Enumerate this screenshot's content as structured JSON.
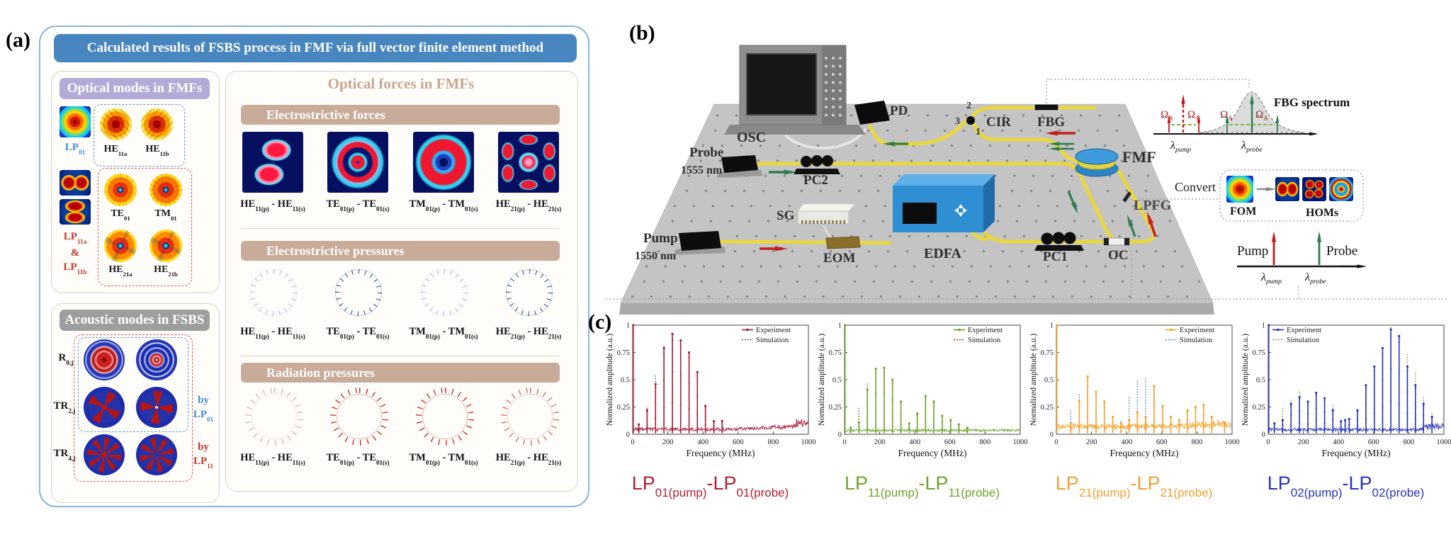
{
  "panel_a": {
    "label": "(a)",
    "title": "Calculated results of FSBS process in FMF via full vector finite element method",
    "optical": {
      "header": "Optical modes in FMFs",
      "lp01": {
        "b": "LP",
        "s": "01"
      },
      "he11a": {
        "b": "HE",
        "s": "11a"
      },
      "he11b": {
        "b": "HE",
        "s": "11b"
      },
      "lp11_line1": {
        "b": "LP",
        "s": "11a"
      },
      "lp11_amp": "&",
      "lp11_line2": {
        "b": "LP",
        "s": "11b"
      },
      "te01": {
        "b": "TE",
        "s": "01"
      },
      "tm01": {
        "b": "TM",
        "s": "01"
      },
      "he21a": {
        "b": "HE",
        "s": "21a"
      },
      "he21b": {
        "b": "HE",
        "s": "21b"
      }
    },
    "acoustic": {
      "header": "Acoustic modes in FSBS",
      "r0": {
        "b": "R",
        "s": "0,j"
      },
      "tr2": {
        "b": "TR",
        "s": "2,j"
      },
      "tr4": {
        "b": "TR",
        "s": "4,j"
      },
      "by1": {
        "t": "by",
        "b": "LP",
        "s": "01"
      },
      "by2": {
        "t": "by",
        "b": "LP",
        "s": "11"
      }
    },
    "forces": {
      "title": "Optical forces in FMFs",
      "sections": [
        {
          "header": "Electrostrictive forces"
        },
        {
          "header": "Electrostrictive pressures"
        },
        {
          "header": "Radiation pressures"
        }
      ],
      "pairs": [
        {
          "b1": "HE",
          "s1": "11(p)",
          "mid": " - ",
          "b2": "HE",
          "s2": "11(s)"
        },
        {
          "b1": "TE",
          "s1": "01(p)",
          "mid": " - ",
          "b2": "TE",
          "s2": "01(s)"
        },
        {
          "b1": "TM",
          "s1": "01(p)",
          "mid": " - ",
          "b2": "TM",
          "s2": "01(s)"
        },
        {
          "b1": "HE",
          "s1": "21(p)",
          "mid": " - ",
          "b2": "HE",
          "s2": "21(s)"
        }
      ]
    }
  },
  "panel_b": {
    "label": "(b)",
    "components": {
      "osc": "OSC",
      "pd": "PD",
      "cir": "CIR",
      "fbg": "FBG",
      "fmf": "FMF",
      "probe": "Probe",
      "probe_wl": "1555 nm",
      "pc2": "PC2",
      "sg": "SG",
      "eom": "EOM",
      "pump": "Pump",
      "pump_wl": "1550 nm",
      "edfa": "EDFA",
      "pc1": "PC1",
      "oc": "OC",
      "lpfg": "LPFG"
    },
    "cir_ports": {
      "p1": "1",
      "p2": "2",
      "p3": "3"
    },
    "fbg_inset": {
      "title": "FBG spectrum",
      "omega": "Ω",
      "omega_sub": "A",
      "lambda": "λ",
      "pump_sub": "pump",
      "probe_sub": "probe"
    },
    "convert": {
      "label": "Convert",
      "fom": "FOM",
      "homs": "HOMs"
    },
    "wave_axis": {
      "pump": "Pump",
      "probe": "Probe"
    }
  },
  "panel_c_label": "(c)",
  "colors": {
    "fiber_yellow": "#e9d83c",
    "arrow_red": "#c41f1f",
    "arrow_green": "#2e7d4f",
    "panel_blue": "#4886bf",
    "lavender": "#b2abd8",
    "tan": "#c9ab9a",
    "gray_header": "#9e9e9e"
  },
  "chart_data": [
    {
      "type": "line",
      "xlabel": "Frequency (MHz)",
      "ylabel": "Normalized amplitude (a.u.)",
      "xlim": [
        0,
        1000
      ],
      "ylim": [
        0,
        1
      ],
      "xticks": [
        0,
        200,
        400,
        600,
        800,
        1000
      ],
      "yticks": [
        0,
        0.25,
        0.5,
        0.75,
        1
      ],
      "legend": [
        "Experiment",
        "Simulation"
      ],
      "legend_position": "top-right",
      "color": "#a51c3a",
      "sim_color": "#4a6868",
      "label_color": "#b01f35",
      "noise_floor": 0.05,
      "mode": {
        "b1": "LP",
        "s1": "01(pump)",
        "b2": "-LP",
        "s2": "01(probe)"
      },
      "experiment_peaks": [
        [
          3,
          1.0
        ],
        [
          35,
          0.09
        ],
        [
          82,
          0.22
        ],
        [
          130,
          0.46
        ],
        [
          178,
          0.79
        ],
        [
          226,
          0.92
        ],
        [
          273,
          0.86
        ],
        [
          321,
          0.75
        ],
        [
          368,
          0.57
        ],
        [
          414,
          0.26
        ],
        [
          462,
          0.12
        ],
        [
          509,
          0.12
        ]
      ],
      "simulation_peaks": [
        [
          82,
          0.26
        ],
        [
          130,
          0.55
        ],
        [
          178,
          0.81
        ],
        [
          226,
          0.9
        ],
        [
          273,
          0.84
        ],
        [
          321,
          0.69
        ],
        [
          368,
          0.46
        ],
        [
          414,
          0.25
        ],
        [
          462,
          0.08
        ]
      ]
    },
    {
      "type": "line",
      "xlabel": "Frequency (MHz)",
      "ylabel": "Normalized amplitude (a.u.)",
      "xlim": [
        0,
        1000
      ],
      "ylim": [
        0,
        1
      ],
      "xticks": [
        0,
        200,
        400,
        600,
        800,
        1000
      ],
      "yticks": [
        0,
        0.25,
        0.5,
        0.75,
        1
      ],
      "legend": [
        "Experiment",
        "Simulation"
      ],
      "legend_position": "top-right",
      "color": "#6fa32c",
      "sim_color": "#7a4f1a",
      "label_color": "#6ba32b",
      "noise_floor": 0.035,
      "mode": {
        "b1": "LP",
        "s1": "11(pump)",
        "b2": "-LP",
        "s2": "11(probe)"
      },
      "experiment_peaks": [
        [
          3,
          1.0
        ],
        [
          35,
          0.06
        ],
        [
          82,
          0.11
        ],
        [
          130,
          0.41
        ],
        [
          178,
          0.6
        ],
        [
          226,
          0.61
        ],
        [
          273,
          0.5
        ],
        [
          321,
          0.3
        ],
        [
          368,
          0.1
        ],
        [
          414,
          0.19
        ],
        [
          461,
          0.35
        ],
        [
          508,
          0.3
        ],
        [
          556,
          0.17
        ],
        [
          604,
          0.13
        ],
        [
          651,
          0.09
        ],
        [
          699,
          0.06
        ]
      ],
      "simulation_peaks": [
        [
          82,
          0.25
        ],
        [
          130,
          0.48
        ],
        [
          178,
          0.61
        ],
        [
          226,
          0.56
        ],
        [
          273,
          0.4
        ],
        [
          321,
          0.22
        ],
        [
          414,
          0.18
        ],
        [
          461,
          0.32
        ],
        [
          508,
          0.28
        ],
        [
          556,
          0.14
        ],
        [
          604,
          0.11
        ],
        [
          651,
          0.08
        ]
      ]
    },
    {
      "type": "line",
      "xlabel": "Frequency (MHz)",
      "ylabel": "Normalized amplitude (a.u.)",
      "xlim": [
        0,
        1000
      ],
      "ylim": [
        0,
        1
      ],
      "xticks": [
        0,
        200,
        400,
        600,
        800,
        1000
      ],
      "yticks": [
        0,
        0.25,
        0.5,
        0.75,
        1
      ],
      "legend": [
        "Experiment",
        "Simulation"
      ],
      "legend_position": "top-right",
      "color": "#f4a22e",
      "sim_color": "#4f80c8",
      "label_color": "#f0a032",
      "noise_floor": 0.07,
      "mode": {
        "b1": "LP",
        "s1": "21(pump)",
        "b2": "-LP",
        "s2": "21(probe)"
      },
      "experiment_peaks": [
        [
          3,
          1.0
        ],
        [
          82,
          0.1
        ],
        [
          130,
          0.31
        ],
        [
          178,
          0.53
        ],
        [
          226,
          0.39
        ],
        [
          273,
          0.3
        ],
        [
          321,
          0.16
        ],
        [
          368,
          0.1
        ],
        [
          414,
          0.13
        ],
        [
          461,
          0.2
        ],
        [
          508,
          0.16
        ],
        [
          556,
          0.44
        ],
        [
          604,
          0.26
        ],
        [
          651,
          0.16
        ],
        [
          699,
          0.13
        ],
        [
          746,
          0.22
        ],
        [
          792,
          0.25
        ],
        [
          838,
          0.27
        ],
        [
          884,
          0.16
        ],
        [
          957,
          0.11
        ]
      ],
      "simulation_peaks": [
        [
          82,
          0.22
        ],
        [
          130,
          0.37
        ],
        [
          178,
          0.3
        ],
        [
          226,
          0.2
        ],
        [
          273,
          0.12
        ],
        [
          368,
          0.12
        ],
        [
          414,
          0.35
        ],
        [
          461,
          0.5
        ],
        [
          508,
          0.53
        ],
        [
          556,
          0.4
        ],
        [
          604,
          0.2
        ],
        [
          651,
          0.1
        ]
      ]
    },
    {
      "type": "line",
      "xlabel": "Frequency (MHz)",
      "ylabel": "Normalized amplitude (a.u.)",
      "xlim": [
        0,
        1000
      ],
      "ylim": [
        0,
        1
      ],
      "xticks": [
        0,
        200,
        400,
        600,
        800,
        1000
      ],
      "yticks": [
        0,
        0.25,
        0.5,
        0.75,
        1
      ],
      "legend": [
        "Experiment",
        "Simulation"
      ],
      "legend_position": "top-left",
      "color": "#2b35b5",
      "sim_color": "#8f9428",
      "label_color": "#2834b8",
      "noise_floor": 0.045,
      "mode": {
        "b1": "LP",
        "s1": "02(pump)",
        "b2": "-LP",
        "s2": "02(probe)"
      },
      "experiment_peaks": [
        [
          3,
          1.0
        ],
        [
          35,
          0.1
        ],
        [
          82,
          0.13
        ],
        [
          130,
          0.28
        ],
        [
          178,
          0.34
        ],
        [
          226,
          0.3
        ],
        [
          273,
          0.38
        ],
        [
          321,
          0.33
        ],
        [
          368,
          0.22
        ],
        [
          414,
          0.12
        ],
        [
          438,
          0.13
        ],
        [
          461,
          0.14
        ],
        [
          508,
          0.22
        ],
        [
          556,
          0.45
        ],
        [
          604,
          0.62
        ],
        [
          651,
          0.79
        ],
        [
          698,
          0.96
        ],
        [
          745,
          0.9
        ],
        [
          792,
          0.62
        ],
        [
          838,
          0.45
        ],
        [
          884,
          0.28
        ],
        [
          932,
          0.16
        ]
      ],
      "simulation_peaks": [
        [
          82,
          0.25
        ],
        [
          130,
          0.33
        ],
        [
          178,
          0.41
        ],
        [
          226,
          0.28
        ],
        [
          273,
          0.31
        ],
        [
          321,
          0.28
        ],
        [
          368,
          0.28
        ],
        [
          414,
          0.1
        ],
        [
          508,
          0.2
        ],
        [
          556,
          0.42
        ],
        [
          604,
          0.56
        ],
        [
          651,
          0.73
        ],
        [
          698,
          0.99
        ],
        [
          745,
          0.88
        ],
        [
          792,
          0.75
        ],
        [
          838,
          0.58
        ],
        [
          884,
          0.34
        ],
        [
          932,
          0.2
        ]
      ]
    }
  ]
}
